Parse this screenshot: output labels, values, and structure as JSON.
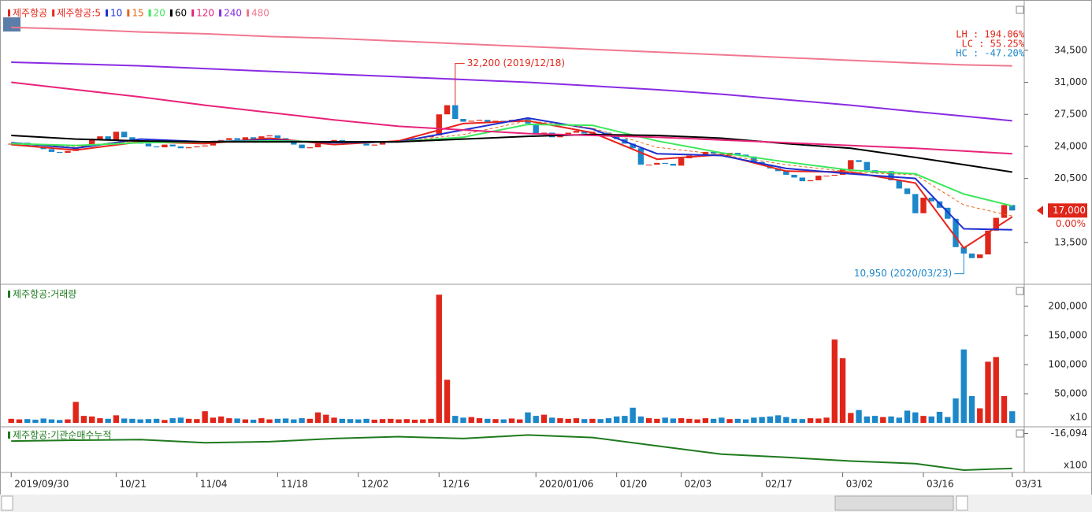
{
  "chart_data": [
    {
      "type": "candlestick",
      "title": "제주항공",
      "legend_prefix": "제주항공:",
      "open": [
        24200,
        24300,
        24400,
        24100,
        23900,
        23700,
        23400,
        23300,
        23500,
        23900,
        24200,
        24800,
        25100,
        24700,
        25600,
        25000,
        24500,
        24300,
        24000,
        23900,
        24200,
        24000,
        23800,
        23900,
        24000,
        24100,
        24600,
        24700,
        24900,
        24700,
        25000,
        24800,
        25100,
        25200,
        24900,
        24500,
        24200,
        23800,
        23900,
        24300,
        24600,
        24700,
        24600,
        24500,
        24300,
        24100,
        24200,
        24500,
        24600,
        24700,
        24800,
        24900,
        25000,
        25200,
        27500,
        28500,
        27000,
        26700,
        26800,
        26900,
        26600,
        26800,
        26700,
        26900,
        27000,
        26500,
        25300,
        25500,
        25000,
        25200,
        25500,
        25700,
        25400,
        25600,
        25500,
        25200,
        24800,
        24300,
        23800,
        22000,
        22000,
        22200,
        22100,
        21900,
        22700,
        23000,
        23100,
        23400,
        23200,
        23000,
        23300,
        23100,
        22900,
        22300,
        22000,
        21600,
        21300,
        20900,
        20600,
        20200,
        20300,
        20800,
        20800,
        20900,
        21500,
        22500,
        22300,
        21400,
        21100,
        21300,
        20300,
        19400,
        18800,
        16700,
        18400,
        18000,
        17300,
        16100,
        13000,
        12300,
        11800,
        12200,
        14800,
        16200,
        17600
      ],
      "close": [
        24300,
        24400,
        24100,
        23900,
        23700,
        23400,
        23300,
        23500,
        23900,
        24200,
        24800,
        25100,
        24700,
        25600,
        25000,
        24500,
        24300,
        24000,
        23900,
        24200,
        24000,
        23800,
        23900,
        24000,
        24100,
        24600,
        24700,
        24900,
        24700,
        25000,
        24800,
        25100,
        25200,
        24900,
        24500,
        24200,
        23800,
        23900,
        24300,
        24600,
        24700,
        24600,
        24500,
        24300,
        24100,
        24200,
        24500,
        24600,
        24700,
        24800,
        24900,
        25000,
        25200,
        27500,
        28500,
        27000,
        26700,
        26800,
        26900,
        26600,
        26800,
        26700,
        26900,
        27000,
        26500,
        25300,
        25500,
        25000,
        25200,
        25500,
        25700,
        25400,
        25600,
        25500,
        25200,
        24800,
        24300,
        23800,
        22000,
        22000,
        22200,
        22100,
        21900,
        22700,
        23000,
        23100,
        23400,
        23200,
        23000,
        23300,
        23100,
        22900,
        22300,
        22000,
        21600,
        21300,
        20900,
        20600,
        20200,
        20300,
        20800,
        20800,
        20900,
        21500,
        22500,
        22300,
        21400,
        21100,
        21300,
        20300,
        19400,
        18800,
        16700,
        18400,
        18000,
        17300,
        16100,
        13000,
        12300,
        11800,
        12200,
        14800,
        16200,
        17600,
        17000
      ],
      "up_color": "#e0261a",
      "down_color": "#1c87c9",
      "ma_x": [
        0,
        8,
        16,
        24,
        32,
        40,
        48,
        56,
        64,
        72,
        80,
        88,
        96,
        104,
        112,
        118,
        124
      ],
      "series": [
        {
          "name": "5",
          "color": "#e8231c",
          "values": [
            24200,
            23600,
            24500,
            24300,
            24900,
            24200,
            24600,
            26500,
            26800,
            25500,
            22600,
            23100,
            21300,
            21200,
            20000,
            12900,
            16300
          ]
        },
        {
          "name": "10",
          "color": "#1f2fd0",
          "values": [
            24400,
            23800,
            24800,
            24500,
            24700,
            24400,
            24500,
            25800,
            27100,
            25900,
            23200,
            23000,
            21600,
            21000,
            20500,
            15000,
            14900
          ]
        },
        {
          "name": "15",
          "color": "#e8651c",
          "dashed": true,
          "values": [
            24300,
            24000,
            24600,
            24500,
            24600,
            24500,
            24500,
            25300,
            26800,
            26000,
            23900,
            23100,
            22000,
            21200,
            20900,
            17600,
            16400
          ]
        },
        {
          "name": "20",
          "color": "#3ce85c",
          "values": [
            24300,
            24100,
            24400,
            24500,
            24600,
            24500,
            24500,
            25000,
            26400,
            26300,
            24600,
            23300,
            22300,
            21400,
            21000,
            18800,
            17500
          ]
        },
        {
          "name": "60",
          "color": "#000000",
          "values": [
            25200,
            24800,
            24600,
            24500,
            24500,
            24500,
            24500,
            24800,
            25100,
            25300,
            25200,
            24900,
            24300,
            23800,
            22800,
            22000,
            21200
          ]
        },
        {
          "name": "120",
          "color": "#e8237a",
          "values": [
            31000,
            30200,
            29400,
            28500,
            27700,
            26900,
            26200,
            25800,
            25400,
            25200,
            25000,
            24700,
            24400,
            24100,
            23800,
            23500,
            23200
          ]
        },
        {
          "name": "240",
          "color": "#8a2be2",
          "values": [
            33200,
            33000,
            32800,
            32500,
            32200,
            31900,
            31600,
            31300,
            31000,
            30600,
            30200,
            29700,
            29100,
            28500,
            27800,
            27300,
            26800
          ]
        },
        {
          "name": "480",
          "color": "#f07890",
          "values": [
            37000,
            36800,
            36500,
            36300,
            36000,
            35800,
            35500,
            35200,
            34900,
            34600,
            34300,
            34000,
            33700,
            33400,
            33100,
            32900,
            32800
          ]
        }
      ],
      "annotations": [
        {
          "x": 55,
          "value": 32200,
          "label": "32,200 (2019/12/18)"
        },
        {
          "x": 118,
          "value": 10950,
          "label": "10,950 (2020/03/23)"
        }
      ],
      "stats": [
        "LH : 194.06%",
        "LC :  55.25%",
        "HC : -47.20%"
      ],
      "current_price": {
        "value": 17000,
        "label": "17,000"
      },
      "change_label": "0.00%",
      "xlim": [
        -0.9,
        125.1
      ],
      "ylim": [
        9200,
        39560
      ],
      "yticks": [
        {
          "value": 13500,
          "label": "13,500"
        },
        {
          "value": 20500,
          "label": "20,500"
        },
        {
          "value": 24000,
          "label": "24,000"
        },
        {
          "value": 27500,
          "label": "27,500"
        },
        {
          "value": 31000,
          "label": "31,000"
        },
        {
          "value": 34500,
          "label": "34,500"
        }
      ],
      "xticks": [
        {
          "value": 0,
          "label": "2019/09/30"
        },
        {
          "value": 13,
          "label": "10/21"
        },
        {
          "value": 23,
          "label": "11/04"
        },
        {
          "value": 33,
          "label": "11/18"
        },
        {
          "value": 43,
          "label": "12/02"
        },
        {
          "value": 53,
          "label": "12/16"
        },
        {
          "value": 65,
          "label": "2020/01/06"
        },
        {
          "value": 75,
          "label": "01/20"
        },
        {
          "value": 83,
          "label": "02/03"
        },
        {
          "value": 93,
          "label": "02/17"
        },
        {
          "value": 103,
          "label": "03/02"
        },
        {
          "value": 113,
          "label": "03/16"
        },
        {
          "value": 124,
          "label": "03/31"
        }
      ]
    },
    {
      "type": "volume",
      "title": "제주항공:거래량",
      "unit": "x10",
      "values": [
        7000,
        6000,
        6500,
        5500,
        7500,
        6000,
        5000,
        6000,
        36000,
        12000,
        11000,
        8000,
        7000,
        13000,
        7500,
        7000,
        6000,
        6500,
        7000,
        5000,
        8000,
        9000,
        7000,
        6500,
        20000,
        9000,
        11000,
        8000,
        7500,
        6000,
        5500,
        8000,
        6000,
        7000,
        7500,
        6000,
        8000,
        7000,
        18000,
        14000,
        9000,
        7000,
        6500,
        6000,
        7000,
        5500,
        6500,
        7000,
        6000,
        6500,
        5500,
        6000,
        7000,
        220000,
        74000,
        12000,
        9000,
        10000,
        8000,
        7000,
        6500,
        6000,
        7500,
        6000,
        18000,
        12000,
        14000,
        9000,
        8000,
        7000,
        8000,
        6500,
        7000,
        6500,
        8000,
        11000,
        12000,
        26000,
        11000,
        8000,
        7000,
        9000,
        7500,
        8000,
        7000,
        6000,
        8000,
        7000,
        9000,
        6500,
        7000,
        6000,
        9000,
        10000,
        11000,
        13000,
        10000,
        7000,
        6500,
        8000,
        7500,
        9000,
        143000,
        111000,
        17000,
        22000,
        11000,
        12000,
        10000,
        11000,
        9000,
        21000,
        18000,
        12000,
        11000,
        19000,
        10000,
        42000,
        126000,
        46000,
        25000,
        105000,
        113000,
        46000,
        20000
      ],
      "ylim": [
        0,
        236500
      ],
      "yticks": [
        {
          "value": 50000,
          "label": "50,000"
        },
        {
          "value": 100000,
          "label": "100,000"
        },
        {
          "value": 150000,
          "label": "150,000"
        },
        {
          "value": 200000,
          "label": "200,000"
        }
      ]
    },
    {
      "type": "line",
      "title": "제주항공:기관순매수누적",
      "unit": "x100",
      "color": "#1e7a1e",
      "x": [
        0,
        8,
        16,
        24,
        32,
        40,
        48,
        56,
        64,
        72,
        80,
        88,
        96,
        104,
        112,
        118,
        124
      ],
      "values": [
        -19700,
        -19300,
        -19000,
        -20500,
        -20000,
        -18500,
        -17600,
        -18500,
        -16800,
        -18000,
        -22000,
        -26000,
        -27500,
        -29300,
        -30500,
        -33600,
        -32800
      ],
      "ylim": [
        -34000,
        -14000
      ],
      "yticks": [
        {
          "value": -16094,
          "label": "-16,094"
        }
      ]
    }
  ]
}
